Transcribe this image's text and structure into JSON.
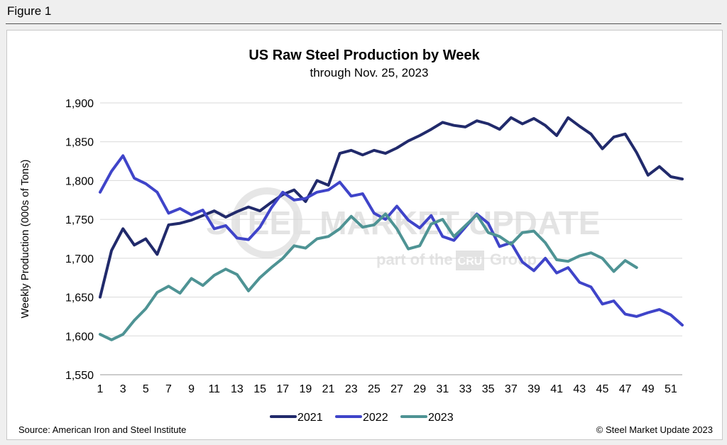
{
  "figure_label": "Figure 1",
  "source": "Source: American Iron and Steel Institute",
  "copyright": "© Steel Market Update 2023",
  "watermark": {
    "line1": "STEEL MARKET UPDATE",
    "line2": "part of the",
    "badge": "CRU",
    "line3": "Group"
  },
  "colors": {
    "2021": "#212a6b",
    "2022": "#3f44c9",
    "2023": "#4e9394",
    "grid": "#d9d9d9",
    "axis": "#999999"
  },
  "chart_data": {
    "type": "line",
    "title": "US Raw Steel Production by Week",
    "subtitle": "through Nov. 25, 2023",
    "xlabel": "",
    "ylabel": "Weekly Production (000s of Tons)",
    "ylim": [
      1550,
      1900
    ],
    "yticks": [
      1550,
      1600,
      1650,
      1700,
      1750,
      1800,
      1850,
      1900
    ],
    "xlim": [
      1,
      52
    ],
    "xticks": [
      1,
      3,
      5,
      7,
      9,
      11,
      13,
      15,
      17,
      19,
      21,
      23,
      25,
      27,
      29,
      31,
      33,
      35,
      37,
      39,
      41,
      43,
      45,
      47,
      49,
      51
    ],
    "grid": true,
    "legend": "bottom",
    "series": [
      {
        "name": "2021",
        "x_start": 1,
        "values": [
          1650,
          1710,
          1738,
          1717,
          1725,
          1705,
          1743,
          1745,
          1749,
          1755,
          1761,
          1753,
          1760,
          1766,
          1761,
          1772,
          1782,
          1788,
          1773,
          1800,
          1794,
          1835,
          1839,
          1833,
          1839,
          1835,
          1842,
          1851,
          1858,
          1866,
          1875,
          1871,
          1869,
          1877,
          1873,
          1866,
          1881,
          1873,
          1880,
          1871,
          1858,
          1881,
          1870,
          1860,
          1841,
          1856,
          1860,
          1836,
          1807,
          1818,
          1805,
          1802
        ]
      },
      {
        "name": "2022",
        "x_start": 1,
        "values": [
          1785,
          1812,
          1832,
          1803,
          1796,
          1785,
          1758,
          1764,
          1756,
          1762,
          1738,
          1742,
          1726,
          1724,
          1740,
          1765,
          1785,
          1775,
          1777,
          1785,
          1788,
          1798,
          1780,
          1783,
          1758,
          1750,
          1767,
          1749,
          1739,
          1755,
          1728,
          1723,
          1740,
          1757,
          1745,
          1715,
          1720,
          1695,
          1684,
          1700,
          1681,
          1688,
          1669,
          1663,
          1641,
          1645,
          1628,
          1625,
          1630,
          1634,
          1627,
          1614
        ]
      },
      {
        "name": "2023",
        "x_start": 1,
        "values": [
          1602,
          1595,
          1602,
          1620,
          1635,
          1656,
          1664,
          1655,
          1674,
          1665,
          1678,
          1686,
          1679,
          1658,
          1675,
          1688,
          1700,
          1716,
          1713,
          1725,
          1728,
          1738,
          1754,
          1740,
          1743,
          1757,
          1738,
          1712,
          1716,
          1744,
          1750,
          1728,
          1742,
          1756,
          1733,
          1728,
          1718,
          1733,
          1735,
          1720,
          1698,
          1696,
          1703,
          1707,
          1700,
          1683,
          1697,
          1688
        ]
      }
    ]
  }
}
